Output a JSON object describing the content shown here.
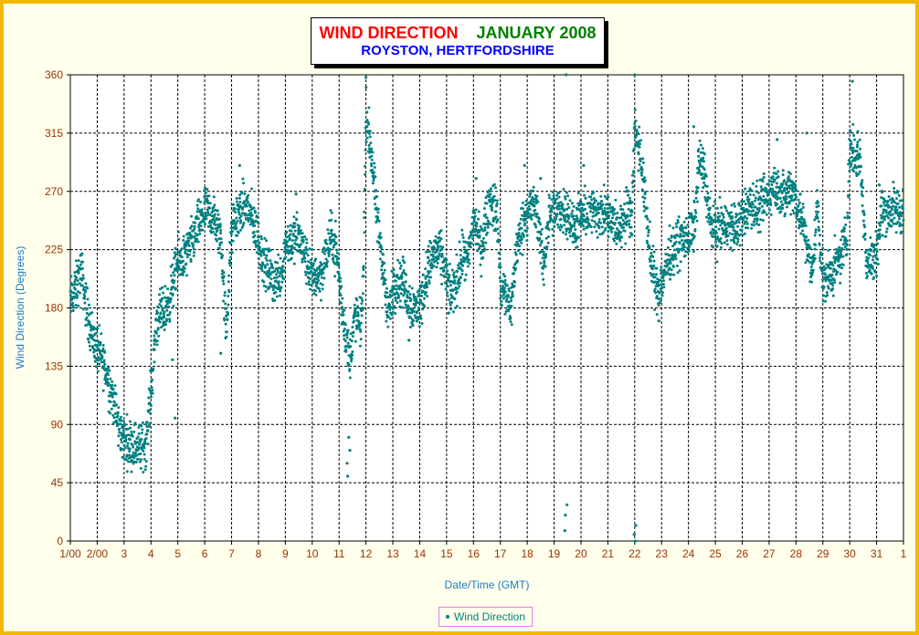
{
  "chart_data": {
    "type": "scatter",
    "title_part1": "WIND DIRECTION",
    "title_part2": "JANUARY 2008",
    "subtitle": "ROYSTON, HERTFORDSHIRE",
    "xlabel": "Date/Time (GMT)",
    "ylabel": "Wind Direction (Degrees)",
    "ylim": [
      0,
      360
    ],
    "yticks": [
      0,
      45,
      90,
      135,
      180,
      225,
      270,
      315,
      360
    ],
    "xlim": [
      1,
      32
    ],
    "xticks": [
      {
        "x": 1,
        "label": "1/00"
      },
      {
        "x": 2,
        "label": "2/00"
      },
      {
        "x": 3,
        "label": "3"
      },
      {
        "x": 4,
        "label": "4"
      },
      {
        "x": 5,
        "label": "5"
      },
      {
        "x": 6,
        "label": "6"
      },
      {
        "x": 7,
        "label": "7"
      },
      {
        "x": 8,
        "label": "8"
      },
      {
        "x": 9,
        "label": "9"
      },
      {
        "x": 10,
        "label": "10"
      },
      {
        "x": 11,
        "label": "11"
      },
      {
        "x": 12,
        "label": "12"
      },
      {
        "x": 13,
        "label": "13"
      },
      {
        "x": 14,
        "label": "14"
      },
      {
        "x": 15,
        "label": "15"
      },
      {
        "x": 16,
        "label": "16"
      },
      {
        "x": 17,
        "label": "17"
      },
      {
        "x": 18,
        "label": "18"
      },
      {
        "x": 19,
        "label": "19"
      },
      {
        "x": 20,
        "label": "20"
      },
      {
        "x": 21,
        "label": "21"
      },
      {
        "x": 22,
        "label": "22"
      },
      {
        "x": 23,
        "label": "23"
      },
      {
        "x": 24,
        "label": "24"
      },
      {
        "x": 25,
        "label": "25"
      },
      {
        "x": 26,
        "label": "26"
      },
      {
        "x": 27,
        "label": "27"
      },
      {
        "x": 28,
        "label": "28"
      },
      {
        "x": 29,
        "label": "29"
      },
      {
        "x": 30,
        "label": "30"
      },
      {
        "x": 31,
        "label": "31"
      },
      {
        "x": 32,
        "label": "1"
      }
    ],
    "grid": true,
    "legend_position": "bottom-center",
    "series": [
      {
        "name": "Wind Direction",
        "color": "#008080",
        "trend": [
          [
            1.0,
            185
          ],
          [
            1.2,
            195
          ],
          [
            1.4,
            210
          ],
          [
            1.6,
            180
          ],
          [
            1.8,
            160
          ],
          [
            2.0,
            148
          ],
          [
            2.2,
            140
          ],
          [
            2.4,
            125
          ],
          [
            2.6,
            110
          ],
          [
            2.8,
            88
          ],
          [
            3.0,
            78
          ],
          [
            3.3,
            75
          ],
          [
            3.6,
            72
          ],
          [
            3.8,
            75
          ],
          [
            4.0,
            115
          ],
          [
            4.2,
            170
          ],
          [
            4.6,
            180
          ],
          [
            5.0,
            215
          ],
          [
            5.3,
            220
          ],
          [
            5.6,
            235
          ],
          [
            6.0,
            255
          ],
          [
            6.3,
            250
          ],
          [
            6.6,
            235
          ],
          [
            6.8,
            160
          ],
          [
            7.0,
            240
          ],
          [
            7.3,
            255
          ],
          [
            7.6,
            258
          ],
          [
            7.9,
            240
          ],
          [
            8.2,
            215
          ],
          [
            8.6,
            200
          ],
          [
            8.9,
            210
          ],
          [
            9.0,
            230
          ],
          [
            9.5,
            235
          ],
          [
            9.8,
            215
          ],
          [
            10.0,
            205
          ],
          [
            10.3,
            205
          ],
          [
            10.5,
            220
          ],
          [
            10.7,
            235
          ],
          [
            10.9,
            225
          ],
          [
            11.1,
            180
          ],
          [
            11.4,
            140
          ],
          [
            11.6,
            175
          ],
          [
            11.8,
            165
          ],
          [
            11.9,
            200
          ],
          [
            12.0,
            330
          ],
          [
            12.2,
            300
          ],
          [
            12.4,
            250
          ],
          [
            12.6,
            220
          ],
          [
            12.8,
            175
          ],
          [
            13.1,
            200
          ],
          [
            13.4,
            200
          ],
          [
            13.6,
            185
          ],
          [
            13.8,
            180
          ],
          [
            14.0,
            180
          ],
          [
            14.3,
            210
          ],
          [
            14.6,
            225
          ],
          [
            14.9,
            215
          ],
          [
            15.1,
            190
          ],
          [
            15.3,
            195
          ],
          [
            15.6,
            220
          ],
          [
            15.8,
            215
          ],
          [
            16.0,
            250
          ],
          [
            16.3,
            225
          ],
          [
            16.6,
            265
          ],
          [
            16.9,
            250
          ],
          [
            17.0,
            195
          ],
          [
            17.2,
            190
          ],
          [
            17.4,
            180
          ],
          [
            17.6,
            225
          ],
          [
            17.9,
            250
          ],
          [
            18.2,
            260
          ],
          [
            18.4,
            250
          ],
          [
            18.6,
            210
          ],
          [
            18.8,
            250
          ],
          [
            19.2,
            255
          ],
          [
            19.5,
            255
          ],
          [
            19.7,
            240
          ],
          [
            20.0,
            250
          ],
          [
            20.5,
            255
          ],
          [
            21.0,
            250
          ],
          [
            21.4,
            240
          ],
          [
            21.7,
            255
          ],
          [
            21.9,
            255
          ],
          [
            22.0,
            320
          ],
          [
            22.2,
            300
          ],
          [
            22.4,
            260
          ],
          [
            22.6,
            215
          ],
          [
            22.8,
            195
          ],
          [
            23.0,
            200
          ],
          [
            23.3,
            220
          ],
          [
            23.6,
            230
          ],
          [
            24.0,
            235
          ],
          [
            24.2,
            240
          ],
          [
            24.4,
            295
          ],
          [
            24.6,
            285
          ],
          [
            24.8,
            245
          ],
          [
            25.0,
            240
          ],
          [
            25.5,
            245
          ],
          [
            25.8,
            240
          ],
          [
            26.0,
            250
          ],
          [
            26.3,
            260
          ],
          [
            26.6,
            255
          ],
          [
            26.9,
            265
          ],
          [
            27.2,
            275
          ],
          [
            27.4,
            270
          ],
          [
            27.6,
            265
          ],
          [
            27.8,
            275
          ],
          [
            28.0,
            265
          ],
          [
            28.2,
            250
          ],
          [
            28.4,
            230
          ],
          [
            28.6,
            205
          ],
          [
            28.8,
            260
          ],
          [
            29.0,
            200
          ],
          [
            29.3,
            205
          ],
          [
            29.6,
            215
          ],
          [
            29.9,
            240
          ],
          [
            30.0,
            305
          ],
          [
            30.2,
            300
          ],
          [
            30.4,
            295
          ],
          [
            30.6,
            220
          ],
          [
            30.8,
            215
          ],
          [
            31.0,
            225
          ],
          [
            31.2,
            255
          ],
          [
            31.5,
            255
          ],
          [
            31.8,
            255
          ],
          [
            32.0,
            255
          ]
        ],
        "outliers": [
          [
            12.0,
            358
          ],
          [
            19.45,
            360
          ],
          [
            19.42,
            20
          ],
          [
            19.4,
            8
          ],
          [
            19.48,
            28
          ],
          [
            22.0,
            360
          ],
          [
            21.98,
            5
          ],
          [
            22.02,
            0
          ],
          [
            22.04,
            12
          ],
          [
            11.3,
            60
          ],
          [
            11.32,
            50
          ],
          [
            11.36,
            80
          ],
          [
            11.4,
            70
          ],
          [
            16.1,
            280
          ],
          [
            6.6,
            145
          ],
          [
            4.8,
            140
          ],
          [
            4.9,
            95
          ],
          [
            7.3,
            290
          ],
          [
            17.9,
            290
          ],
          [
            24.2,
            320
          ],
          [
            27.3,
            310
          ],
          [
            28.4,
            315
          ],
          [
            30.1,
            355
          ],
          [
            31.1,
            275
          ],
          [
            22.9,
            170
          ],
          [
            13.6,
            155
          ],
          [
            9.4,
            268
          ],
          [
            18.5,
            280
          ],
          [
            20.1,
            290
          ]
        ]
      }
    ]
  }
}
